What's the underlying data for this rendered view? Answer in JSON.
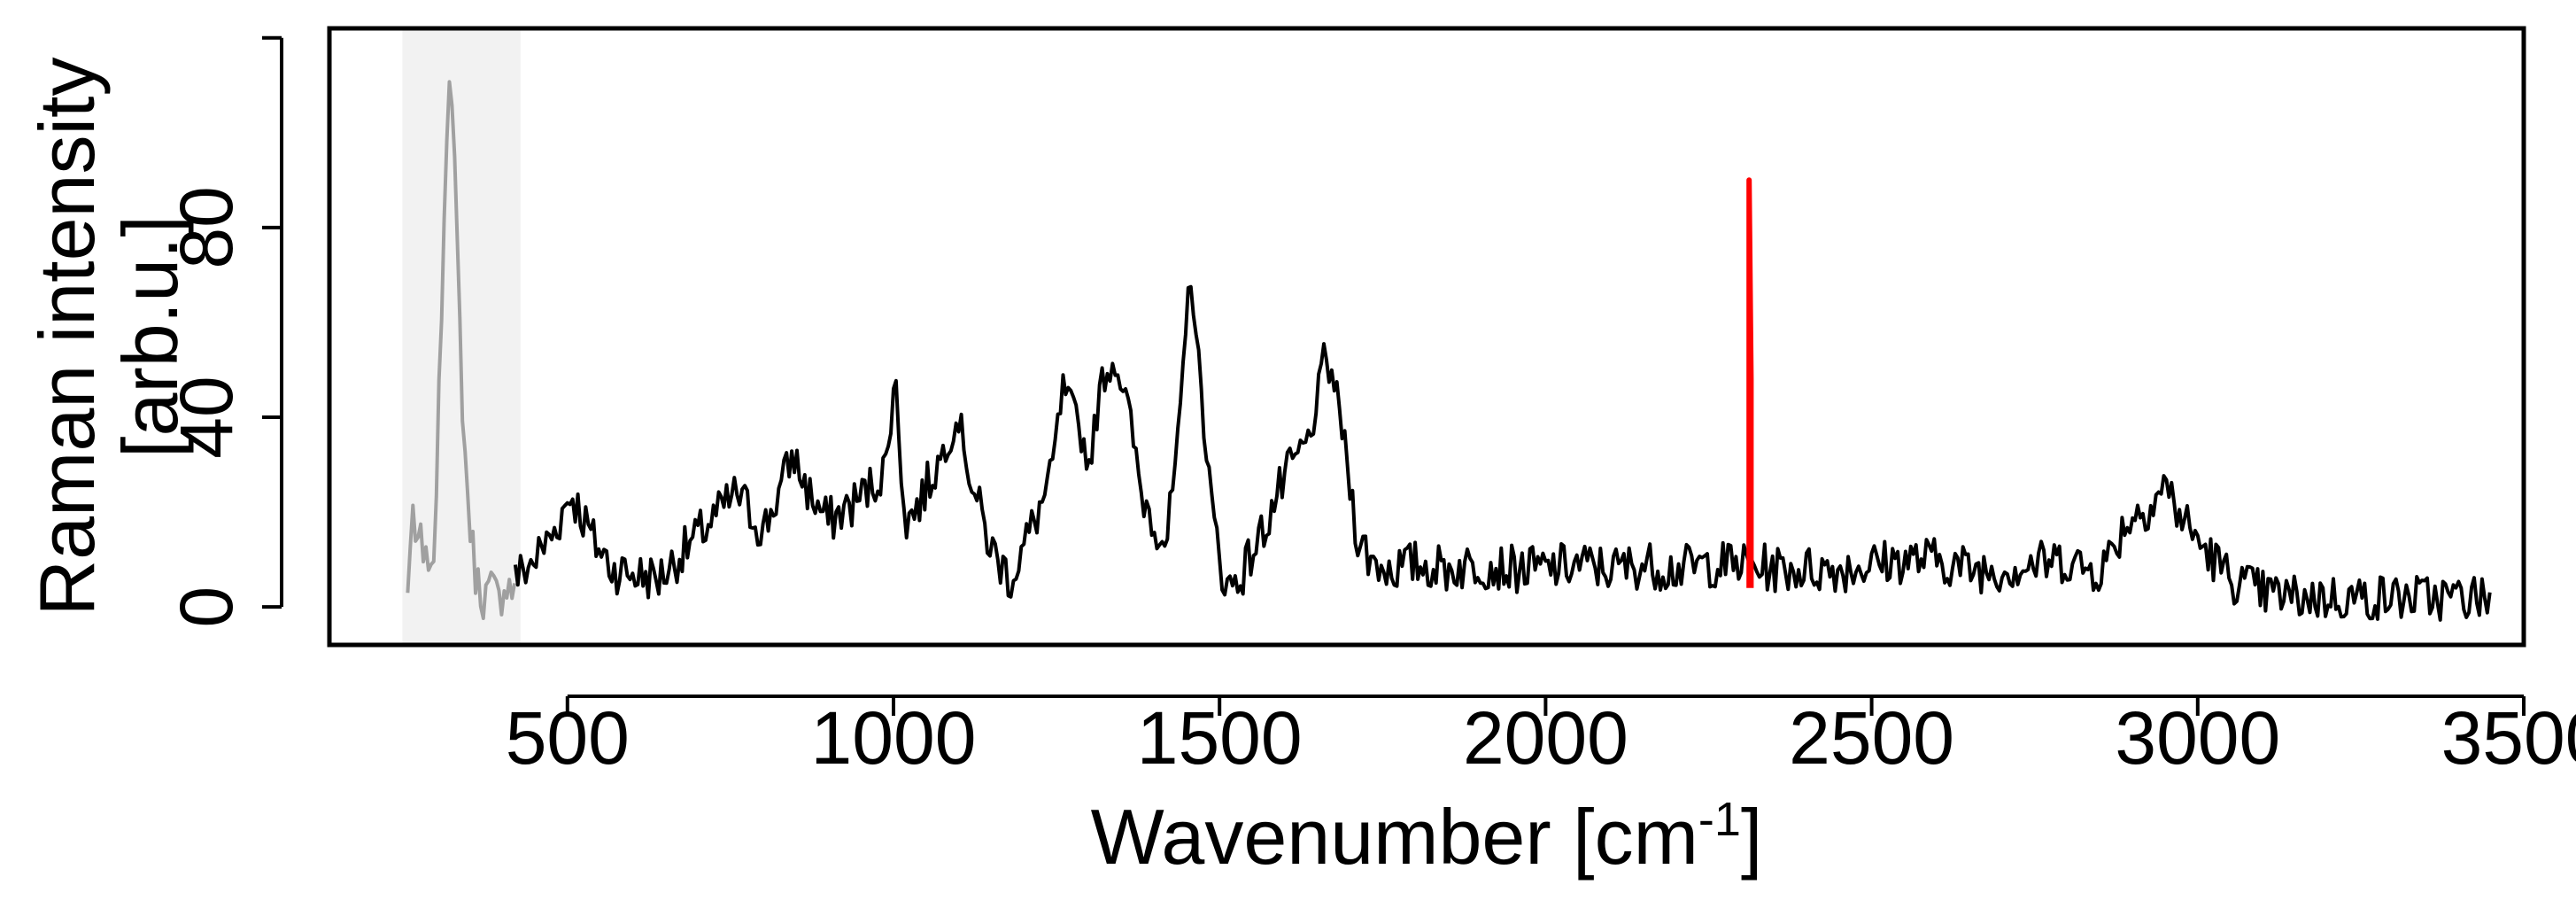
{
  "chart_data": {
    "type": "line",
    "title": "",
    "xlabel": "Wavenumber [cm",
    "xlabel_superscript": "-1",
    "xlabel_suffix": "]",
    "ylabel_line1": "Raman intensity",
    "ylabel_line2": "[arb.u.]",
    "xlim": [
      135,
      3500
    ],
    "ylim": [
      -8,
      122
    ],
    "xticks": [
      500,
      1000,
      1500,
      2000,
      2500,
      3000,
      3500
    ],
    "xtick_labels": [
      "500",
      "1000",
      "1500",
      "2000",
      "2500",
      "3000",
      "3500"
    ],
    "yticks": [
      0,
      40,
      80,
      120
    ],
    "ytick_labels": [
      "0",
      "40",
      "80",
      ""
    ],
    "grid": false,
    "legend": "none",
    "excluded_region": {
      "x": [
        255,
        420
      ],
      "shade_color": "#f2f2f2"
    },
    "noise": {
      "seed": 7,
      "step": 4,
      "amplitude": 5
    },
    "series": [
      {
        "color": "#a0a0a0",
        "x": [
          255,
          262,
          268,
          274,
          280,
          286,
          292,
          300,
          310,
          318,
          325,
          332,
          340,
          350,
          360,
          372,
          385,
          395,
          405,
          415,
          420
        ],
        "y": [
          2,
          24,
          6,
          20,
          3,
          14,
          2,
          30,
          78,
          116,
          100,
          72,
          38,
          18,
          6,
          2,
          4,
          1,
          6,
          3,
          8
        ]
      },
      {
        "color": "#000000",
        "x": [
          420,
          450,
          480,
          505,
          520,
          540,
          570,
          600,
          640,
          680,
          720,
          760,
          800,
          830,
          845,
          870,
          900,
          940,
          970,
          990,
          1002,
          1010,
          1020,
          1040,
          1060,
          1080,
          1100,
          1120,
          1150,
          1180,
          1210,
          1240,
          1260,
          1280,
          1300,
          1320,
          1340,
          1360,
          1380,
          1400,
          1420,
          1440,
          1455,
          1470,
          1490,
          1510,
          1530,
          1560,
          1590,
          1620,
          1640,
          1660,
          1675,
          1690,
          1710,
          1730,
          1760,
          1800,
          1850,
          1900,
          1950,
          2000,
          2050,
          2100,
          2150,
          2200,
          2250,
          2300,
          2350,
          2400,
          2450,
          2500,
          2550,
          2600,
          2650,
          2700,
          2750,
          2800,
          2830,
          2850,
          2870,
          2890,
          2910,
          2930,
          2950,
          2970,
          3000,
          3050,
          3100,
          3150,
          3200,
          3250,
          3300,
          3350,
          3400,
          3450
        ],
        "y": [
          6,
          10,
          16,
          24,
          20,
          14,
          8,
          7,
          6,
          12,
          18,
          24,
          16,
          26,
          32,
          24,
          18,
          22,
          26,
          30,
          50,
          32,
          18,
          22,
          28,
          34,
          40,
          26,
          12,
          6,
          16,
          26,
          46,
          40,
          30,
          48,
          52,
          42,
          24,
          18,
          14,
          40,
          72,
          48,
          18,
          4,
          6,
          14,
          24,
          32,
          36,
          52,
          48,
          36,
          16,
          10,
          8,
          9,
          8,
          9,
          8,
          8,
          9,
          8,
          9,
          8,
          9,
          9,
          8,
          8,
          8,
          9,
          10,
          10,
          8,
          8,
          9,
          10,
          8,
          8,
          12,
          18,
          20,
          22,
          26,
          20,
          14,
          6,
          3,
          2,
          2,
          2,
          2,
          2,
          2,
          2
        ]
      },
      {
        "color": "#ff0000",
        "x": [
          2312,
          2312,
          2315,
          2315
        ],
        "y": [
          4,
          90,
          48,
          4
        ]
      }
    ]
  }
}
